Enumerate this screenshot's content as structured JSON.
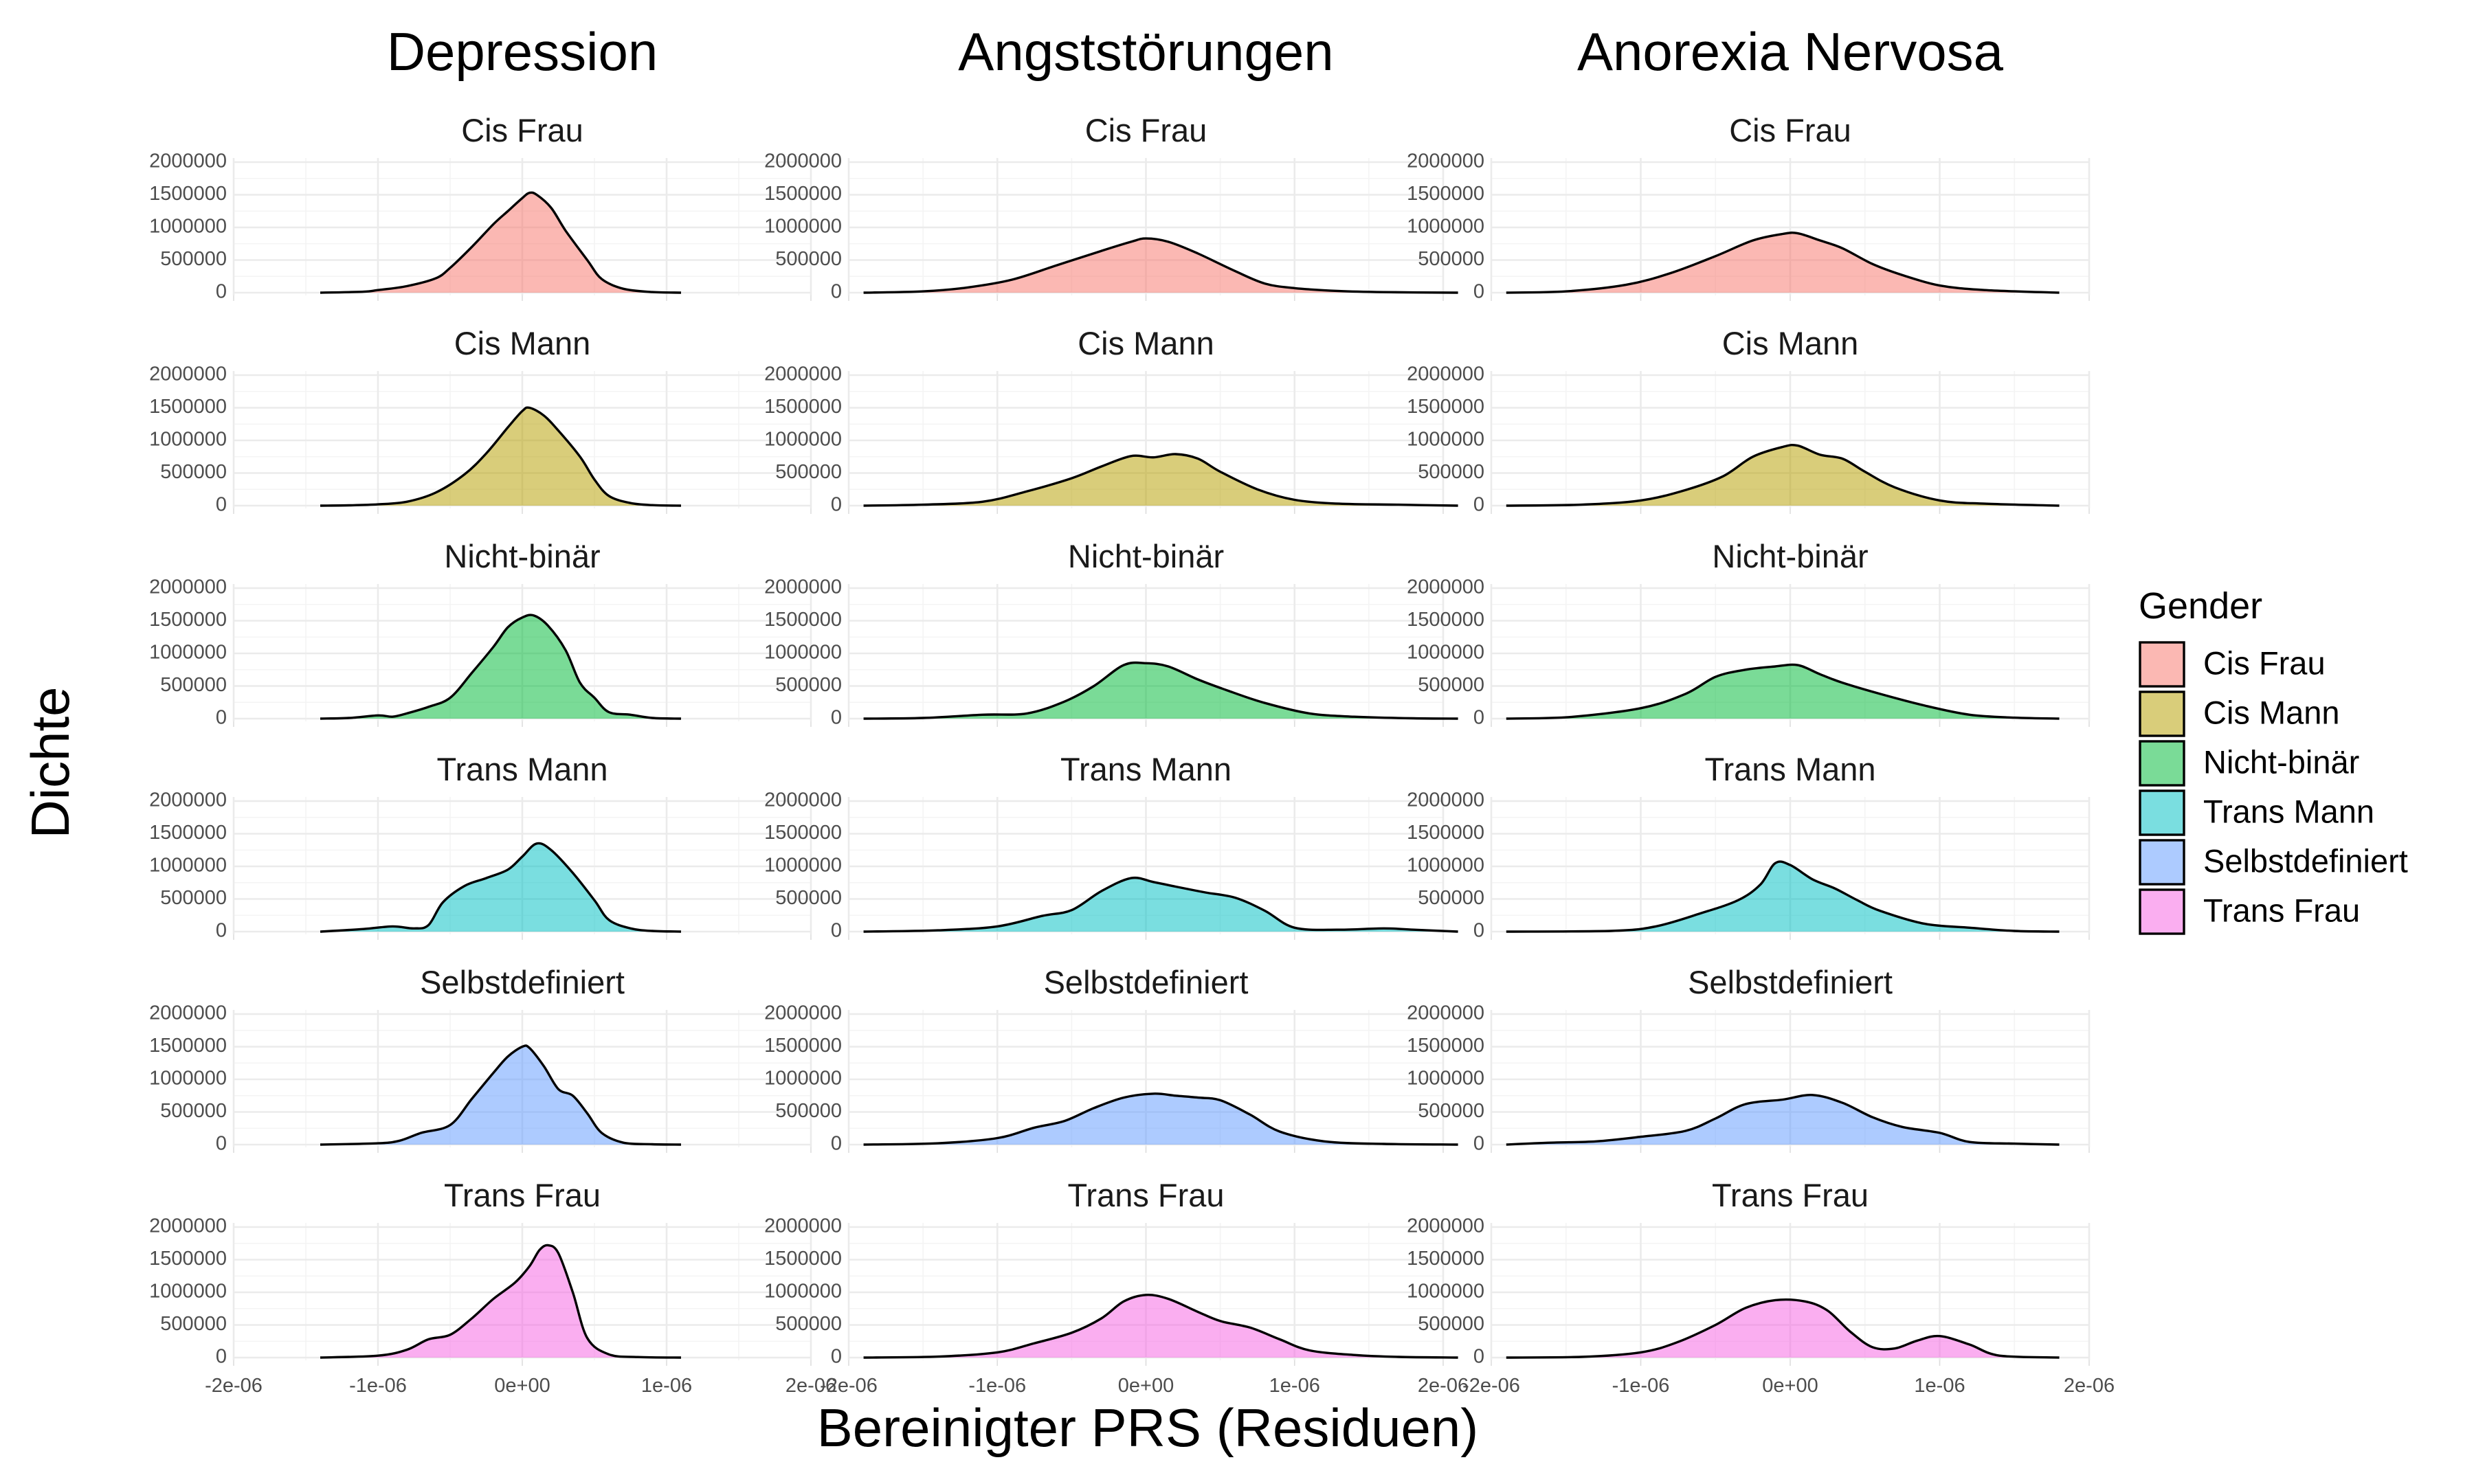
{
  "chart_data": {
    "type": "area",
    "subtype": "density-facet-grid",
    "xlabel": "Bereinigter PRS (Residuen)",
    "ylabel": "Dichte",
    "xlim": [
      -2e-06,
      2e-06
    ],
    "ylim": [
      0,
      2000000
    ],
    "x_ticks": [
      -2e-06,
      -1e-06,
      0,
      1e-06,
      2e-06
    ],
    "x_tick_labels": [
      "-2e-06",
      "-1e-06",
      "0e+00",
      "1e-06",
      "2e-06"
    ],
    "y_ticks": [
      0,
      500000,
      1000000,
      1500000,
      2000000
    ],
    "y_tick_labels": [
      "0",
      "500000",
      "1000000",
      "1500000",
      "2000000"
    ],
    "grid": true,
    "legend": {
      "title": "Gender",
      "position": "right",
      "entries": [
        {
          "name": "Cis Frau",
          "color": "#F8766D"
        },
        {
          "name": "Cis Mann",
          "color": "#B79F00"
        },
        {
          "name": "Nicht-binär",
          "color": "#00BA38"
        },
        {
          "name": "Trans Mann",
          "color": "#00BFC4"
        },
        {
          "name": "Selbstdefiniert",
          "color": "#619CFF"
        },
        {
          "name": "Trans Frau",
          "color": "#F564E3"
        }
      ]
    },
    "columns": [
      {
        "title": "Depression",
        "panels": [
          {
            "gender": "Cis Frau",
            "x": [
              -1.4e-06,
              -1.1e-06,
              -1e-06,
              -8e-07,
              -6e-07,
              -5e-07,
              -3.5e-07,
              -2e-07,
              -1e-07,
              0,
              5e-08,
              1e-07,
              2e-07,
              3e-07,
              4.5e-07,
              5.5e-07,
              7e-07,
              9e-07,
              1.1e-06
            ],
            "y": [
              0,
              15000,
              40000,
              100000,
              220000,
              380000,
              700000,
              1050000,
              1250000,
              1450000,
              1530000,
              1500000,
              1300000,
              950000,
              500000,
              210000,
              60000,
              10000,
              0
            ]
          },
          {
            "gender": "Cis Mann",
            "x": [
              -1.4e-06,
              -1.2e-06,
              -1e-06,
              -8e-07,
              -6e-07,
              -4e-07,
              -2.5e-07,
              -1e-07,
              0,
              5e-08,
              1.5e-07,
              2.5e-07,
              4e-07,
              5e-07,
              6e-07,
              7.5e-07,
              9e-07,
              1.1e-06
            ],
            "y": [
              0,
              5000,
              20000,
              60000,
              200000,
              480000,
              800000,
              1200000,
              1450000,
              1500000,
              1380000,
              1150000,
              750000,
              400000,
              150000,
              40000,
              8000,
              0
            ]
          },
          {
            "gender": "Nicht-binär",
            "x": [
              -1.4e-06,
              -1.2e-06,
              -1e-06,
              -9e-07,
              -8e-07,
              -6.5e-07,
              -5e-07,
              -3.5e-07,
              -2e-07,
              -1e-07,
              0,
              8e-08,
              1.8e-07,
              3e-07,
              4e-07,
              5e-07,
              6e-07,
              7.5e-07,
              9e-07,
              1.1e-06
            ],
            "y": [
              0,
              10000,
              50000,
              30000,
              80000,
              180000,
              320000,
              700000,
              1100000,
              1400000,
              1550000,
              1580000,
              1420000,
              1050000,
              550000,
              320000,
              100000,
              60000,
              10000,
              0
            ]
          },
          {
            "gender": "Trans Mann",
            "x": [
              -1.4e-06,
              -1.1e-06,
              -9e-07,
              -7.5e-07,
              -6.5e-07,
              -5.5e-07,
              -4e-07,
              -2.5e-07,
              -1e-07,
              0,
              1e-07,
              2e-07,
              3.5e-07,
              5e-07,
              6e-07,
              7.5e-07,
              9e-07,
              1.1e-06
            ],
            "y": [
              0,
              40000,
              80000,
              50000,
              100000,
              450000,
              700000,
              820000,
              950000,
              1150000,
              1350000,
              1250000,
              900000,
              480000,
              180000,
              50000,
              10000,
              0
            ]
          },
          {
            "gender": "Selbstdefiniert",
            "x": [
              -1.4e-06,
              -1e-06,
              -8.5e-07,
              -7e-07,
              -5e-07,
              -3.5e-07,
              -2e-07,
              -1e-07,
              0,
              5e-08,
              1.5e-07,
              2.5e-07,
              3.5e-07,
              4.5e-07,
              5.5e-07,
              7e-07,
              9e-07,
              1.1e-06
            ],
            "y": [
              0,
              20000,
              60000,
              180000,
              300000,
              700000,
              1100000,
              1350000,
              1500000,
              1480000,
              1200000,
              850000,
              750000,
              480000,
              180000,
              30000,
              5000,
              0
            ]
          },
          {
            "gender": "Trans Frau",
            "x": [
              -1.4e-06,
              -1e-06,
              -8e-07,
              -6.5e-07,
              -5e-07,
              -3.5e-07,
              -2e-07,
              -5e-08,
              5e-08,
              1.2e-07,
              1.8e-07,
              2.5e-07,
              3.5e-07,
              4.5e-07,
              6e-07,
              8e-07,
              1.1e-06
            ],
            "y": [
              0,
              30000,
              120000,
              280000,
              350000,
              600000,
              900000,
              1150000,
              1400000,
              1650000,
              1720000,
              1600000,
              1000000,
              300000,
              50000,
              8000,
              0
            ]
          }
        ]
      },
      {
        "title": "Angststörungen",
        "panels": [
          {
            "gender": "Cis Frau",
            "x": [
              -1.9e-06,
              -1.5e-06,
              -1.2e-06,
              -9e-07,
              -6e-07,
              -3e-07,
              -1e-07,
              0,
              1.5e-07,
              3.5e-07,
              6e-07,
              8e-07,
              1e-06,
              1.3e-06,
              1.6e-06,
              2.1e-06
            ],
            "y": [
              0,
              20000,
              80000,
              200000,
              420000,
              640000,
              780000,
              830000,
              780000,
              600000,
              330000,
              140000,
              70000,
              25000,
              8000,
              0
            ]
          },
          {
            "gender": "Cis Mann",
            "x": [
              -1.9e-06,
              -1.5e-06,
              -1.1e-06,
              -8e-07,
              -5e-07,
              -3e-07,
              -1e-07,
              5e-08,
              2e-07,
              3.5e-07,
              5e-07,
              7.5e-07,
              1e-06,
              1.3e-06,
              1.7e-06,
              2.1e-06
            ],
            "y": [
              0,
              15000,
              60000,
              220000,
              420000,
              600000,
              760000,
              740000,
              790000,
              720000,
              520000,
              250000,
              90000,
              30000,
              15000,
              0
            ]
          },
          {
            "gender": "Nicht-binär",
            "x": [
              -1.9e-06,
              -1.5e-06,
              -1.1e-06,
              -8e-07,
              -5.5e-07,
              -3.5e-07,
              -1.5e-07,
              0,
              1.5e-07,
              3.5e-07,
              5.5e-07,
              8e-07,
              1.1e-06,
              1.4e-06,
              1.8e-06,
              2.1e-06
            ],
            "y": [
              0,
              10000,
              60000,
              80000,
              260000,
              500000,
              820000,
              850000,
              800000,
              600000,
              430000,
              240000,
              80000,
              30000,
              5000,
              0
            ]
          },
          {
            "gender": "Trans Mann",
            "x": [
              -1.9e-06,
              -1.4e-06,
              -1e-06,
              -7e-07,
              -5e-07,
              -3e-07,
              -1e-07,
              5e-08,
              2e-07,
              4e-07,
              6e-07,
              8e-07,
              1e-06,
              1.3e-06,
              1.6e-06,
              1.8e-06,
              2.1e-06
            ],
            "y": [
              0,
              20000,
              80000,
              240000,
              330000,
              620000,
              820000,
              760000,
              690000,
              600000,
              520000,
              320000,
              60000,
              30000,
              50000,
              30000,
              0
            ]
          },
          {
            "gender": "Selbstdefiniert",
            "x": [
              -1.9e-06,
              -1.4e-06,
              -1e-06,
              -7.5e-07,
              -5.5e-07,
              -3.5e-07,
              -1.5e-07,
              5e-08,
              2e-07,
              3.5e-07,
              5e-07,
              7e-07,
              9e-07,
              1.2e-06,
              1.6e-06,
              2.1e-06
            ],
            "y": [
              0,
              20000,
              100000,
              260000,
              360000,
              560000,
              720000,
              780000,
              750000,
              720000,
              680000,
              460000,
              200000,
              50000,
              10000,
              0
            ]
          },
          {
            "gender": "Trans Frau",
            "x": [
              -1.9e-06,
              -1.4e-06,
              -1e-06,
              -7.5e-07,
              -5e-07,
              -3e-07,
              -1.5e-07,
              0,
              1.5e-07,
              3.5e-07,
              5e-07,
              7e-07,
              9e-07,
              1.1e-06,
              1.4e-06,
              1.7e-06,
              2.1e-06
            ],
            "y": [
              0,
              15000,
              80000,
              220000,
              380000,
              600000,
              860000,
              960000,
              900000,
              700000,
              560000,
              460000,
              280000,
              110000,
              40000,
              10000,
              0
            ]
          }
        ]
      },
      {
        "title": "Anorexia Nervosa",
        "panels": [
          {
            "gender": "Cis Frau",
            "x": [
              -1.9e-06,
              -1.5e-06,
              -1.1e-06,
              -8e-07,
              -5e-07,
              -2.5e-07,
              -5e-08,
              5e-08,
              2e-07,
              3.5e-07,
              5.5e-07,
              7.5e-07,
              1e-06,
              1.3e-06,
              1.8e-06
            ],
            "y": [
              0,
              20000,
              120000,
              300000,
              560000,
              800000,
              900000,
              910000,
              800000,
              680000,
              440000,
              270000,
              110000,
              40000,
              0
            ]
          },
          {
            "gender": "Cis Mann",
            "x": [
              -1.9e-06,
              -1.4e-06,
              -1e-06,
              -7e-07,
              -4.5e-07,
              -2.5e-07,
              -5e-08,
              5e-08,
              2e-07,
              3.5e-07,
              5e-07,
              7e-07,
              1e-06,
              1.3e-06,
              1.8e-06
            ],
            "y": [
              0,
              15000,
              80000,
              240000,
              450000,
              750000,
              900000,
              920000,
              780000,
              720000,
              520000,
              280000,
              80000,
              30000,
              0
            ]
          },
          {
            "gender": "Nicht-binär",
            "x": [
              -1.9e-06,
              -1.5e-06,
              -1e-06,
              -7e-07,
              -5e-07,
              -3e-07,
              -1e-07,
              5e-08,
              2e-07,
              3.5e-07,
              6e-07,
              9e-07,
              1.2e-06,
              1.5e-06,
              1.8e-06
            ],
            "y": [
              0,
              20000,
              160000,
              380000,
              640000,
              750000,
              800000,
              820000,
              680000,
              550000,
              380000,
              200000,
              60000,
              15000,
              0
            ]
          },
          {
            "gender": "Trans Mann",
            "x": [
              -1.9e-06,
              -1.2e-06,
              -9e-07,
              -6e-07,
              -3.5e-07,
              -2e-07,
              -1e-07,
              0,
              1.5e-07,
              3e-07,
              4.5e-07,
              6e-07,
              9e-07,
              1.2e-06,
              1.5e-06,
              1.8e-06
            ],
            "y": [
              0,
              10000,
              80000,
              280000,
              480000,
              720000,
              1050000,
              1020000,
              800000,
              660000,
              480000,
              320000,
              120000,
              60000,
              10000,
              0
            ]
          },
          {
            "gender": "Selbstdefiniert",
            "x": [
              -1.9e-06,
              -1.6e-06,
              -1.3e-06,
              -1e-06,
              -7e-07,
              -5e-07,
              -3e-07,
              -5e-08,
              1.5e-07,
              3.5e-07,
              5.5e-07,
              7.5e-07,
              1e-06,
              1.2e-06,
              1.5e-06,
              1.8e-06
            ],
            "y": [
              0,
              30000,
              50000,
              120000,
              210000,
              400000,
              620000,
              690000,
              760000,
              640000,
              420000,
              270000,
              180000,
              40000,
              15000,
              0
            ]
          },
          {
            "gender": "Trans Frau",
            "x": [
              -1.9e-06,
              -1.4e-06,
              -1e-06,
              -7.5e-07,
              -5e-07,
              -3e-07,
              -1e-07,
              1e-07,
              2.5e-07,
              4e-07,
              5.5e-07,
              7e-07,
              8.5e-07,
              1e-06,
              1.2e-06,
              1.4e-06,
              1.8e-06
            ],
            "y": [
              0,
              10000,
              80000,
              240000,
              500000,
              760000,
              880000,
              860000,
              720000,
              400000,
              160000,
              140000,
              260000,
              330000,
              200000,
              30000,
              0
            ]
          }
        ]
      }
    ]
  }
}
